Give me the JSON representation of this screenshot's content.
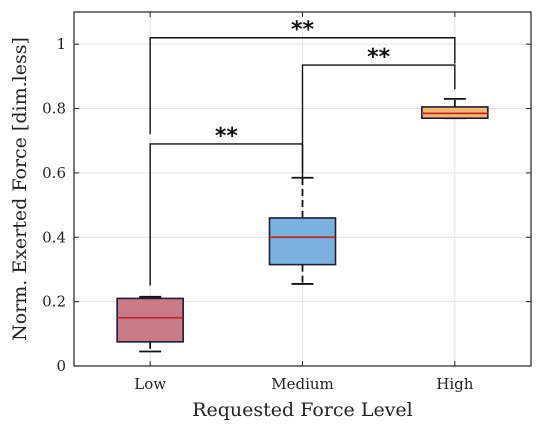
{
  "chart_data": {
    "type": "box",
    "xlabel": "Requested Force Level",
    "ylabel": "Norm. Exerted Force [dim.less]",
    "ylim": [
      0,
      1.1
    ],
    "yticks": [
      0,
      0.2,
      0.4,
      0.6,
      0.8,
      1
    ],
    "ytick_labels": [
      "0",
      "0.2",
      "0.4",
      "0.6",
      "0.8",
      "1"
    ],
    "grid": true,
    "categories": [
      "Low",
      "Medium",
      "High"
    ],
    "boxes": [
      {
        "category": "Low",
        "q1": 0.075,
        "median": 0.15,
        "q3": 0.21,
        "whisker_low": 0.045,
        "whisker_high": 0.215,
        "fill": "#c97a86",
        "median_color": "#c0292b"
      },
      {
        "category": "Medium",
        "q1": 0.315,
        "median": 0.4,
        "q3": 0.46,
        "whisker_low": 0.255,
        "whisker_high": 0.585,
        "fill": "#7ab3e0",
        "median_color": "#c0292b"
      },
      {
        "category": "High",
        "q1": 0.77,
        "median": 0.785,
        "q3": 0.805,
        "whisker_low": 0.77,
        "whisker_high": 0.83,
        "fill": "#f7b96b",
        "median_color": "#c0292b"
      }
    ],
    "significance": [
      {
        "from": "Low",
        "to": "Medium",
        "label": "**",
        "bar_y": 0.69,
        "from_y": 0.25,
        "to_y": 0.58
      },
      {
        "from": "Medium",
        "to": "High",
        "label": "**",
        "bar_y": 0.935,
        "from_y": 0.6,
        "to_y": 0.86
      },
      {
        "from": "Low",
        "to": "High",
        "label": "**",
        "bar_y": 1.02,
        "from_y": 0.72,
        "to_y": 0.94
      }
    ]
  }
}
